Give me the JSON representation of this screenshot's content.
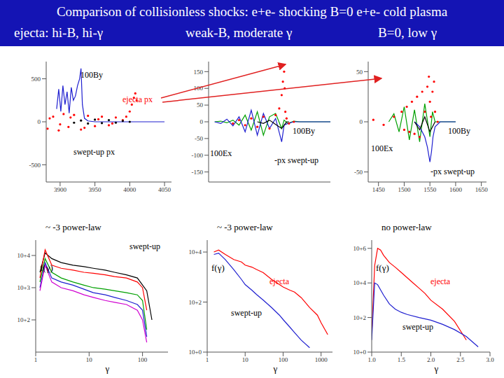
{
  "title": "Comparison of collisionless shocks: e+e- shocking B=0 e+e- cold plasma",
  "subtitles": [
    "ejecta: hi-B, hi-γ",
    "weak-B, moderate γ",
    "B=0, low γ"
  ],
  "chart_data": [
    {
      "type": "line",
      "xlim": [
        3880,
        4060
      ],
      "xticks": [
        3900,
        3950,
        4000,
        4050
      ],
      "ylim": [
        -700,
        700
      ],
      "yticks": [
        -500,
        0,
        500
      ],
      "series": [
        {
          "name": "100By",
          "color": "#1f1fd0",
          "type": "line",
          "x": [
            3895,
            3898,
            3901,
            3904,
            3907,
            3910,
            3913,
            3916,
            3919,
            3922,
            3925,
            3928,
            3930,
            3932,
            3935,
            3940,
            3950,
            3970,
            4000,
            4050
          ],
          "values": [
            150,
            380,
            120,
            420,
            200,
            350,
            100,
            400,
            250,
            300,
            420,
            500,
            620,
            200,
            40,
            10,
            0,
            0,
            0,
            0
          ]
        },
        {
          "name": "ejecta px",
          "color": "#ff0000",
          "type": "scatter",
          "x": [
            3882,
            3890,
            3898,
            3905,
            3912,
            3920,
            3930,
            3940,
            3950,
            3960,
            3970,
            3980,
            3990,
            3995,
            4000,
            4003,
            4006,
            4008,
            4010,
            3885,
            3900,
            3915,
            3935,
            3955,
            3975
          ],
          "values": [
            -80,
            60,
            -100,
            90,
            -60,
            80,
            -90,
            70,
            -50,
            60,
            -40,
            50,
            20,
            60,
            120,
            200,
            280,
            330,
            250,
            40,
            -30,
            50,
            -70,
            30,
            -20
          ]
        },
        {
          "name": "swept-up px",
          "color": "#000000",
          "type": "scatter",
          "x": [
            3920,
            3930,
            3940,
            3950,
            3960,
            3970,
            3980,
            3990,
            4000
          ],
          "values": [
            -10,
            15,
            -20,
            25,
            -15,
            20,
            -10,
            10,
            0
          ]
        }
      ]
    },
    {
      "type": "line",
      "tick_labels": "y",
      "xlim": [
        0,
        100
      ],
      "ylim": [
        -180,
        180
      ],
      "yticks": [
        -150,
        -100,
        -50,
        0,
        50,
        100,
        150
      ],
      "series": [
        {
          "color": "#ff0000",
          "type": "scatter",
          "x": [
            20,
            25,
            30,
            35,
            40,
            45,
            50,
            55,
            58,
            60,
            61,
            62,
            62.5,
            63,
            64,
            66,
            70
          ],
          "values": [
            -5,
            5,
            -10,
            10,
            -15,
            15,
            -20,
            20,
            40,
            80,
            120,
            150,
            100,
            30,
            10,
            -5,
            0
          ]
        },
        {
          "name": "100Ex",
          "color": "#00a000",
          "type": "line",
          "x": [
            5,
            10,
            15,
            20,
            25,
            30,
            35,
            40,
            45,
            50,
            55,
            60,
            62,
            65,
            70,
            75,
            80,
            90,
            100
          ],
          "values": [
            0,
            2,
            -3,
            5,
            -10,
            20,
            -25,
            30,
            -40,
            15,
            25,
            -20,
            5,
            -5,
            2,
            0,
            0,
            0,
            0
          ]
        },
        {
          "name": "100By",
          "color": "#1f1fd0",
          "type": "line",
          "x": [
            5,
            10,
            15,
            20,
            25,
            30,
            35,
            40,
            45,
            50,
            55,
            60,
            62,
            65,
            70,
            75,
            80,
            90,
            100
          ],
          "values": [
            0,
            -5,
            8,
            -12,
            15,
            -30,
            35,
            -40,
            25,
            -20,
            10,
            -60,
            -10,
            -5,
            0,
            0,
            0,
            0,
            0
          ]
        },
        {
          "name": "-px swept-up",
          "color": "#000000",
          "type": "line",
          "x": [
            40,
            45,
            50,
            55,
            60,
            62,
            64,
            66
          ],
          "values": [
            0,
            -5,
            5,
            -8,
            -20,
            -10,
            0,
            0
          ]
        }
      ]
    },
    {
      "type": "line",
      "xlim": [
        1430,
        1660
      ],
      "xticks": [
        1450,
        1500,
        1550,
        1600,
        1650
      ],
      "ylim": [
        -60,
        60
      ],
      "yticks": [
        -50,
        0,
        50
      ],
      "series": [
        {
          "color": "#ff0000",
          "type": "scatter",
          "x": [
            1440,
            1460,
            1480,
            1495,
            1500,
            1505,
            1510,
            1515,
            1520,
            1525,
            1530,
            1535,
            1540,
            1545,
            1548,
            1550,
            1552,
            1555,
            1558,
            1560,
            1565
          ],
          "values": [
            2,
            -3,
            5,
            10,
            -8,
            15,
            -10,
            20,
            -12,
            25,
            -15,
            30,
            10,
            35,
            45,
            20,
            5,
            30,
            40,
            10,
            0
          ]
        },
        {
          "name": "100Ex",
          "color": "#00a000",
          "type": "line",
          "x": [
            1470,
            1480,
            1490,
            1500,
            1510,
            1520,
            1530,
            1540,
            1550,
            1555,
            1560,
            1570,
            1600
          ],
          "values": [
            0,
            8,
            -10,
            15,
            -18,
            12,
            -20,
            18,
            -15,
            10,
            0,
            0,
            0
          ]
        },
        {
          "name": "100By",
          "color": "#1f1fd0",
          "type": "line",
          "x": [
            1520,
            1530,
            1540,
            1545,
            1550,
            1553,
            1556,
            1560,
            1570,
            1600
          ],
          "values": [
            0,
            -5,
            -15,
            -25,
            -40,
            -30,
            -15,
            -5,
            0,
            0
          ]
        },
        {
          "name": "-px swept-up",
          "color": "#000000",
          "type": "line",
          "x": [
            1520,
            1530,
            1540,
            1550,
            1560
          ],
          "values": [
            0,
            -8,
            5,
            -10,
            0
          ]
        }
      ]
    },
    {
      "type": "line",
      "log": true,
      "annotations": [
        "~ -3 power-law"
      ],
      "ylabel": "f(γ)",
      "xlabel": "γ",
      "xlim": [
        1,
        300
      ],
      "xticks": [
        1,
        10,
        100
      ],
      "ylim": [
        10,
        30000
      ],
      "yticks": [
        {
          "value": 100,
          "label": "10+2"
        },
        {
          "value": 1000,
          "label": "10+3"
        },
        {
          "value": 10000,
          "label": "10+4"
        }
      ],
      "series": [
        {
          "name": "swept-up",
          "color": "#000000",
          "type": "line",
          "x": [
            1.2,
            1.5,
            2,
            3,
            5,
            8,
            12,
            20,
            30,
            50,
            80,
            120,
            150
          ],
          "values": [
            3000,
            12000,
            8000,
            6000,
            5000,
            4500,
            4000,
            3500,
            3000,
            2500,
            2000,
            800,
            100
          ]
        },
        {
          "color": "#ff0000",
          "type": "line",
          "x": [
            1.2,
            1.5,
            2,
            3,
            5,
            8,
            12,
            20,
            30,
            50,
            80,
            100,
            120
          ],
          "values": [
            2000,
            15000,
            5000,
            4000,
            3500,
            3000,
            2800,
            2500,
            2200,
            2000,
            1500,
            1000,
            200
          ]
        },
        {
          "color": "#00a000",
          "type": "line",
          "x": [
            1.2,
            1.5,
            2,
            3,
            5,
            8,
            12,
            20,
            30,
            50,
            80,
            100,
            120
          ],
          "values": [
            1500,
            8000,
            3000,
            2000,
            1500,
            1200,
            1000,
            900,
            800,
            700,
            600,
            400,
            50
          ]
        },
        {
          "color": "#1f1fd0",
          "type": "line",
          "x": [
            1.2,
            1.5,
            2,
            3,
            5,
            8,
            12,
            20,
            30,
            50,
            80,
            100,
            120
          ],
          "values": [
            1000,
            6000,
            2000,
            1500,
            1200,
            900,
            700,
            600,
            500,
            400,
            300,
            200,
            30
          ]
        },
        {
          "color": "#d000d0",
          "type": "line",
          "x": [
            1.2,
            1.5,
            2,
            3,
            5,
            8,
            12,
            20,
            30,
            50,
            80,
            100,
            120
          ],
          "values": [
            800,
            5000,
            1500,
            1000,
            800,
            600,
            500,
            400,
            350,
            300,
            200,
            100,
            20
          ]
        }
      ]
    },
    {
      "type": "line",
      "log": true,
      "annotations": [
        "~ -3 power-law"
      ],
      "ylabel": "f(γ)",
      "xlabel": "γ",
      "xlim": [
        1,
        2000
      ],
      "xticks": [
        1,
        10,
        100,
        1000
      ],
      "ylim": [
        1,
        30000
      ],
      "yticks": [
        {
          "value": 1,
          "label": "10+0"
        },
        {
          "value": 100,
          "label": "10+2"
        },
        {
          "value": 10000,
          "label": "10+4"
        }
      ],
      "series": [
        {
          "name": "ejecta",
          "color": "#ff0000",
          "type": "line",
          "x": [
            1.5,
            2,
            3,
            5,
            8,
            10,
            15,
            20,
            30,
            50,
            80,
            100,
            150,
            200,
            300,
            500,
            800,
            1000,
            1500
          ],
          "values": [
            10000,
            12000,
            8000,
            5000,
            4000,
            3000,
            2500,
            2000,
            1500,
            800,
            500,
            400,
            300,
            250,
            150,
            60,
            30,
            15,
            5
          ]
        },
        {
          "name": "swept-up",
          "color": "#1f1fd0",
          "type": "line",
          "x": [
            1.5,
            2,
            3,
            5,
            8,
            10,
            15,
            20,
            30,
            50,
            80,
            100,
            150,
            200,
            300,
            500
          ],
          "values": [
            8000,
            9000,
            5000,
            2000,
            800,
            500,
            300,
            200,
            120,
            60,
            30,
            20,
            10,
            6,
            3,
            1.5
          ]
        }
      ]
    },
    {
      "type": "line",
      "log": "y",
      "annotations": [
        "no power-law"
      ],
      "ylabel": "f(γ)",
      "xlabel": "γ",
      "xlim": [
        1,
        3
      ],
      "xticks": [
        {
          "value": 1,
          "label": "1.0"
        },
        1.5,
        {
          "value": 2,
          "label": "2.0"
        },
        2.5,
        {
          "value": 3,
          "label": "3.0"
        }
      ],
      "ylim": [
        1,
        3000000
      ],
      "yticks": [
        {
          "value": 1,
          "label": "10+0"
        },
        {
          "value": 100,
          "label": "10+2"
        },
        {
          "value": 10000,
          "label": "10+4"
        },
        {
          "value": 1000000,
          "label": "10+6"
        }
      ],
      "series": [
        {
          "name": "ejecta",
          "color": "#ff0000",
          "type": "line",
          "x": [
            1.0,
            1.05,
            1.1,
            1.15,
            1.2,
            1.3,
            1.4,
            1.5,
            1.6,
            1.7,
            1.8,
            1.9,
            2.0,
            2.2,
            2.4,
            2.6
          ],
          "values": [
            10,
            100000,
            1000000,
            800000,
            400000,
            150000,
            80000,
            40000,
            20000,
            10000,
            5000,
            2500,
            1000,
            300,
            60,
            5
          ]
        },
        {
          "name": "swept-up",
          "color": "#1f1fd0",
          "type": "line",
          "x": [
            1.0,
            1.05,
            1.1,
            1.2,
            1.3,
            1.4,
            1.5,
            1.6,
            1.8,
            2.0,
            2.2,
            2.4,
            2.6,
            2.8
          ],
          "values": [
            5,
            10000,
            8000,
            2000,
            600,
            300,
            200,
            150,
            100,
            70,
            40,
            20,
            8,
            2
          ]
        }
      ]
    }
  ]
}
